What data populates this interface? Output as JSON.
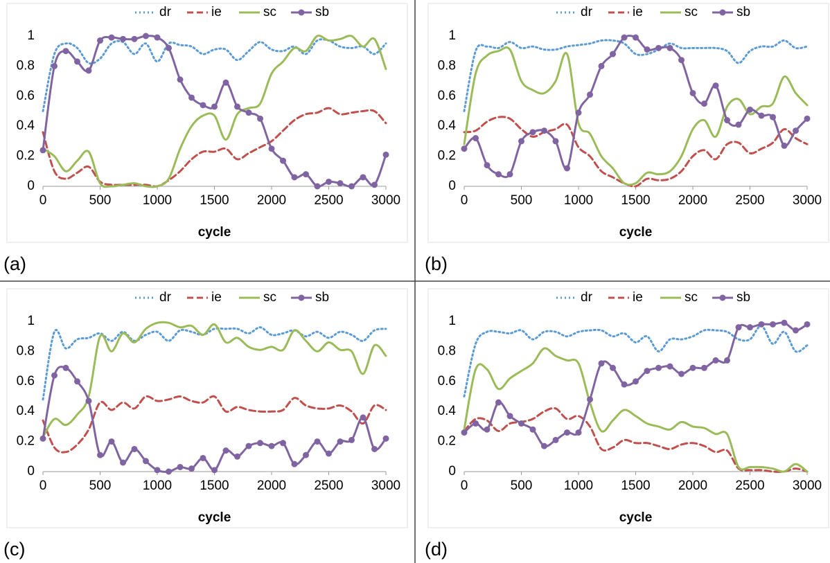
{
  "chart_data": [
    {
      "type": "line",
      "label": "(a)",
      "xlabel": "cycle",
      "x": [
        0,
        100,
        200,
        300,
        400,
        500,
        600,
        700,
        800,
        900,
        1000,
        1100,
        1200,
        1300,
        1400,
        1500,
        1600,
        1700,
        1800,
        1900,
        2000,
        2100,
        2200,
        2300,
        2400,
        2500,
        2600,
        2700,
        2800,
        2900,
        3000
      ],
      "xlim": [
        0,
        3000
      ],
      "xticks": [
        0,
        500,
        1000,
        1500,
        2000,
        2500,
        3000
      ],
      "ylim": [
        0,
        1
      ],
      "yticks": [
        0,
        0.2,
        0.4,
        0.6,
        0.8,
        1
      ],
      "series": [
        {
          "name": "dr",
          "color": "#5b9bd5",
          "line_style": "dotted",
          "marker": false,
          "values": [
            0.5,
            0.88,
            0.95,
            0.92,
            0.82,
            0.85,
            0.95,
            0.96,
            0.88,
            0.95,
            0.83,
            0.95,
            0.94,
            0.93,
            0.88,
            0.91,
            0.91,
            0.84,
            0.9,
            0.96,
            0.91,
            0.9,
            0.93,
            0.88,
            0.97,
            0.97,
            0.93,
            0.92,
            0.93,
            0.88,
            0.95
          ]
        },
        {
          "name": "ie",
          "color": "#c0504d",
          "line_style": "dashed",
          "marker": false,
          "values": [
            0.36,
            0.1,
            0.05,
            0.09,
            0.13,
            0.03,
            0.01,
            0.01,
            0.01,
            0.01,
            0.0,
            0.04,
            0.1,
            0.18,
            0.23,
            0.23,
            0.25,
            0.18,
            0.22,
            0.26,
            0.3,
            0.37,
            0.44,
            0.48,
            0.49,
            0.52,
            0.48,
            0.49,
            0.5,
            0.5,
            0.42
          ]
        },
        {
          "name": "sc",
          "color": "#9bbb59",
          "line_style": "solid",
          "marker": false,
          "values": [
            0.25,
            0.2,
            0.1,
            0.17,
            0.23,
            0.02,
            0.0,
            0.01,
            0.02,
            0.0,
            0.0,
            0.05,
            0.25,
            0.4,
            0.47,
            0.47,
            0.31,
            0.48,
            0.52,
            0.55,
            0.75,
            0.83,
            0.92,
            0.9,
            1.0,
            0.97,
            0.98,
            1.0,
            0.93,
            0.98,
            0.78
          ]
        },
        {
          "name": "sb",
          "color": "#8064a2",
          "line_style": "solid",
          "marker": true,
          "values": [
            0.24,
            0.8,
            0.9,
            0.83,
            0.77,
            0.97,
            0.99,
            0.98,
            0.98,
            1.0,
            0.99,
            0.92,
            0.71,
            0.59,
            0.54,
            0.53,
            0.69,
            0.53,
            0.49,
            0.45,
            0.25,
            0.17,
            0.06,
            0.08,
            0.0,
            0.03,
            0.02,
            0.0,
            0.06,
            0.01,
            0.21
          ]
        }
      ]
    },
    {
      "type": "line",
      "label": "(b)",
      "xlabel": "cycle",
      "x": [
        0,
        100,
        200,
        300,
        400,
        500,
        600,
        700,
        800,
        900,
        1000,
        1100,
        1200,
        1300,
        1400,
        1500,
        1600,
        1700,
        1800,
        1900,
        2000,
        2100,
        2200,
        2300,
        2400,
        2500,
        2600,
        2700,
        2800,
        2900,
        3000
      ],
      "xlim": [
        0,
        3000
      ],
      "xticks": [
        0,
        500,
        1000,
        1500,
        2000,
        2500,
        3000
      ],
      "ylim": [
        0,
        1
      ],
      "yticks": [
        0,
        0.2,
        0.4,
        0.6,
        0.8,
        1
      ],
      "series": [
        {
          "name": "dr",
          "color": "#5b9bd5",
          "line_style": "dotted",
          "marker": false,
          "values": [
            0.5,
            0.9,
            0.93,
            0.92,
            0.96,
            0.92,
            0.93,
            0.91,
            0.91,
            0.93,
            0.94,
            0.95,
            0.97,
            0.97,
            0.95,
            0.88,
            0.88,
            0.91,
            0.95,
            0.92,
            0.92,
            0.92,
            0.92,
            0.9,
            0.82,
            0.9,
            0.93,
            0.93,
            0.97,
            0.92,
            0.93
          ]
        },
        {
          "name": "ie",
          "color": "#c0504d",
          "line_style": "dashed",
          "marker": false,
          "values": [
            0.36,
            0.37,
            0.43,
            0.46,
            0.45,
            0.38,
            0.33,
            0.36,
            0.38,
            0.41,
            0.26,
            0.2,
            0.1,
            0.06,
            0.02,
            0.0,
            0.05,
            0.04,
            0.05,
            0.1,
            0.2,
            0.24,
            0.18,
            0.28,
            0.29,
            0.22,
            0.25,
            0.29,
            0.38,
            0.32,
            0.28
          ]
        },
        {
          "name": "sc",
          "color": "#9bbb59",
          "line_style": "solid",
          "marker": false,
          "values": [
            0.28,
            0.75,
            0.87,
            0.9,
            0.91,
            0.7,
            0.64,
            0.62,
            0.7,
            0.88,
            0.42,
            0.35,
            0.2,
            0.12,
            0.02,
            0.02,
            0.09,
            0.08,
            0.1,
            0.2,
            0.38,
            0.44,
            0.33,
            0.53,
            0.58,
            0.48,
            0.53,
            0.55,
            0.73,
            0.62,
            0.54
          ]
        },
        {
          "name": "sb",
          "color": "#8064a2",
          "line_style": "solid",
          "marker": true,
          "values": [
            0.25,
            0.32,
            0.14,
            0.08,
            0.08,
            0.3,
            0.36,
            0.37,
            0.3,
            0.12,
            0.49,
            0.61,
            0.8,
            0.88,
            0.99,
            0.99,
            0.91,
            0.92,
            0.92,
            0.84,
            0.62,
            0.55,
            0.67,
            0.44,
            0.41,
            0.51,
            0.47,
            0.46,
            0.27,
            0.37,
            0.45
          ]
        }
      ]
    },
    {
      "type": "line",
      "label": "(c)",
      "xlabel": "cycle",
      "x": [
        0,
        100,
        200,
        300,
        400,
        500,
        600,
        700,
        800,
        900,
        1000,
        1100,
        1200,
        1300,
        1400,
        1500,
        1600,
        1700,
        1800,
        1900,
        2000,
        2100,
        2200,
        2300,
        2400,
        2500,
        2600,
        2700,
        2800,
        2900,
        3000
      ],
      "xlim": [
        0,
        3000
      ],
      "xticks": [
        0,
        500,
        1000,
        1500,
        2000,
        2500,
        3000
      ],
      "ylim": [
        0,
        1
      ],
      "yticks": [
        0,
        0.2,
        0.4,
        0.6,
        0.8,
        1
      ],
      "series": [
        {
          "name": "dr",
          "color": "#5b9bd5",
          "line_style": "dotted",
          "marker": false,
          "values": [
            0.48,
            0.93,
            0.82,
            0.88,
            0.89,
            0.92,
            0.87,
            0.93,
            0.87,
            0.91,
            0.93,
            0.87,
            0.94,
            0.93,
            0.91,
            0.95,
            0.95,
            0.95,
            0.92,
            0.96,
            0.91,
            0.92,
            0.94,
            0.9,
            0.93,
            0.89,
            0.93,
            0.91,
            0.87,
            0.94,
            0.95
          ]
        },
        {
          "name": "ie",
          "color": "#c0504d",
          "line_style": "dashed",
          "marker": false,
          "values": [
            0.34,
            0.16,
            0.13,
            0.18,
            0.28,
            0.46,
            0.41,
            0.46,
            0.42,
            0.5,
            0.47,
            0.48,
            0.5,
            0.47,
            0.46,
            0.5,
            0.4,
            0.43,
            0.41,
            0.4,
            0.4,
            0.41,
            0.49,
            0.44,
            0.42,
            0.42,
            0.44,
            0.4,
            0.32,
            0.44,
            0.41
          ]
        },
        {
          "name": "sc",
          "color": "#9bbb59",
          "line_style": "solid",
          "marker": false,
          "values": [
            0.23,
            0.35,
            0.31,
            0.38,
            0.5,
            0.9,
            0.8,
            0.92,
            0.86,
            0.95,
            0.99,
            0.99,
            0.96,
            0.97,
            0.91,
            0.98,
            0.86,
            0.89,
            0.83,
            0.81,
            0.83,
            0.81,
            0.94,
            0.87,
            0.8,
            0.86,
            0.81,
            0.8,
            0.65,
            0.84,
            0.77
          ]
        },
        {
          "name": "sb",
          "color": "#8064a2",
          "line_style": "solid",
          "marker": true,
          "values": [
            0.22,
            0.64,
            0.69,
            0.6,
            0.47,
            0.11,
            0.2,
            0.06,
            0.15,
            0.07,
            0.01,
            0.0,
            0.03,
            0.02,
            0.09,
            0.01,
            0.14,
            0.1,
            0.17,
            0.19,
            0.17,
            0.19,
            0.05,
            0.11,
            0.2,
            0.12,
            0.2,
            0.21,
            0.36,
            0.15,
            0.22
          ]
        }
      ]
    },
    {
      "type": "line",
      "label": "(d)",
      "xlabel": "cycle",
      "x": [
        0,
        100,
        200,
        300,
        400,
        500,
        600,
        700,
        800,
        900,
        1000,
        1100,
        1200,
        1300,
        1400,
        1500,
        1600,
        1700,
        1800,
        1900,
        2000,
        2100,
        2200,
        2300,
        2400,
        2500,
        2600,
        2700,
        2800,
        2900,
        3000
      ],
      "xlim": [
        0,
        3000
      ],
      "xticks": [
        0,
        500,
        1000,
        1500,
        2000,
        2500,
        3000
      ],
      "ylim": [
        0,
        1
      ],
      "yticks": [
        0,
        0.2,
        0.4,
        0.6,
        0.8,
        1
      ],
      "series": [
        {
          "name": "dr",
          "color": "#5b9bd5",
          "line_style": "dotted",
          "marker": false,
          "values": [
            0.5,
            0.85,
            0.93,
            0.93,
            0.92,
            0.94,
            0.88,
            0.93,
            0.93,
            0.9,
            0.93,
            0.94,
            0.94,
            0.9,
            0.92,
            0.86,
            0.9,
            0.8,
            0.88,
            0.88,
            0.9,
            0.94,
            0.94,
            0.93,
            0.88,
            0.88,
            0.97,
            0.85,
            0.93,
            0.8,
            0.84
          ]
        },
        {
          "name": "ie",
          "color": "#c0504d",
          "line_style": "dashed",
          "marker": false,
          "values": [
            0.27,
            0.35,
            0.34,
            0.27,
            0.32,
            0.33,
            0.35,
            0.4,
            0.42,
            0.35,
            0.37,
            0.3,
            0.15,
            0.16,
            0.21,
            0.19,
            0.19,
            0.17,
            0.15,
            0.18,
            0.19,
            0.17,
            0.13,
            0.14,
            0.02,
            0.01,
            0.01,
            0.0,
            0.0,
            0.02,
            0.0
          ]
        },
        {
          "name": "sc",
          "color": "#9bbb59",
          "line_style": "solid",
          "marker": false,
          "values": [
            0.28,
            0.68,
            0.68,
            0.55,
            0.62,
            0.67,
            0.72,
            0.82,
            0.77,
            0.74,
            0.72,
            0.46,
            0.27,
            0.34,
            0.41,
            0.37,
            0.32,
            0.3,
            0.28,
            0.33,
            0.3,
            0.29,
            0.25,
            0.25,
            0.03,
            0.03,
            0.03,
            0.02,
            0.0,
            0.05,
            0.0
          ]
        },
        {
          "name": "sb",
          "color": "#8064a2",
          "line_style": "solid",
          "marker": true,
          "values": [
            0.26,
            0.32,
            0.28,
            0.46,
            0.37,
            0.32,
            0.28,
            0.17,
            0.21,
            0.26,
            0.26,
            0.48,
            0.72,
            0.69,
            0.58,
            0.6,
            0.67,
            0.69,
            0.7,
            0.65,
            0.69,
            0.69,
            0.74,
            0.74,
            0.96,
            0.96,
            0.98,
            0.98,
            0.99,
            0.94,
            0.98
          ]
        }
      ]
    }
  ]
}
